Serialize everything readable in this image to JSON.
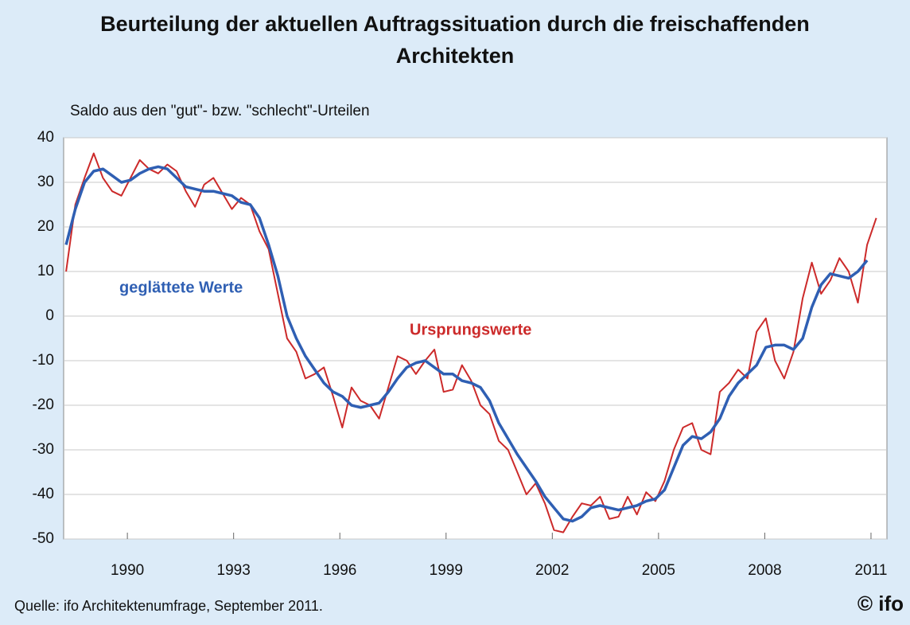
{
  "chart_data": {
    "type": "line",
    "title": [
      "Beurteilung der aktuellen Auftragssituation durch die freischaffenden",
      "Architekten"
    ],
    "subtitle": "Saldo aus den \"gut\"- bzw. \"schlecht\"-Urteilen",
    "source": "Quelle: ifo Architektenumfrage, September 2011.",
    "logo": "© ifo",
    "annotations": [
      "geglättete Werte",
      "Ursprungswerte"
    ],
    "x": [
      1988.27,
      1988.53,
      1988.79,
      1989.05,
      1989.31,
      1989.57,
      1989.83,
      1990.09,
      1990.35,
      1990.61,
      1990.87,
      1991.13,
      1991.39,
      1991.65,
      1991.91,
      1992.17,
      1992.43,
      1992.69,
      1992.95,
      1993.21,
      1993.47,
      1993.73,
      1993.99,
      1994.25,
      1994.51,
      1994.77,
      1995.03,
      1995.29,
      1995.55,
      1995.81,
      1996.07,
      1996.33,
      1996.59,
      1996.85,
      1997.11,
      1997.37,
      1997.63,
      1997.89,
      1998.15,
      1998.41,
      1998.67,
      1998.93,
      1999.19,
      1999.45,
      1999.71,
      1999.97,
      2000.23,
      2000.49,
      2000.75,
      2001.01,
      2001.27,
      2001.53,
      2001.79,
      2002.05,
      2002.31,
      2002.57,
      2002.83,
      2003.09,
      2003.35,
      2003.61,
      2003.87,
      2004.13,
      2004.39,
      2004.65,
      2004.91,
      2005.17,
      2005.43,
      2005.69,
      2005.95,
      2006.21,
      2006.47,
      2006.73,
      2006.99,
      2007.25,
      2007.51,
      2007.77,
      2008.03,
      2008.29,
      2008.55,
      2008.81,
      2009.07,
      2009.33,
      2009.59,
      2009.85,
      2010.11,
      2010.37,
      2010.63,
      2010.89,
      2011.15
    ],
    "series": [
      {
        "name": "Ursprungswerte",
        "color": "#cc2a2a",
        "values": [
          10,
          25,
          31,
          36.5,
          31,
          28,
          27,
          31,
          35,
          33,
          32,
          34,
          32.5,
          28,
          24.5,
          29.5,
          31,
          27.5,
          24,
          26.5,
          25,
          19,
          15,
          5,
          -5,
          -8,
          -14,
          -13,
          -11.5,
          -18,
          -25,
          -16,
          -19,
          -20,
          -23,
          -16,
          -9,
          -10,
          -13,
          -10,
          -7.5,
          -17,
          -16.5,
          -11,
          -14.5,
          -20,
          -22,
          -28,
          -30,
          -35,
          -40,
          -37.5,
          -42,
          -48,
          -48.5,
          -45,
          -42,
          -42.5,
          -40.5,
          -45.5,
          -45,
          -40.5,
          -44.5,
          -39.5,
          -41.5,
          -37,
          -30,
          -25,
          -24,
          -30,
          -31,
          -17,
          -15,
          -12,
          -14,
          -3.5,
          -0.5,
          -10,
          -14,
          -8,
          4,
          12,
          5,
          8,
          13,
          10,
          3,
          16,
          22
        ]
      },
      {
        "name": "geglättete Werte",
        "color": "#2f5fb3",
        "values": [
          16,
          24,
          30,
          32.5,
          33,
          31.5,
          30,
          30.5,
          32,
          33,
          33.5,
          33,
          31,
          29,
          28.5,
          28,
          28,
          27.5,
          27,
          25.5,
          25,
          22,
          16,
          9,
          0,
          -5,
          -9,
          -12,
          -15,
          -17,
          -18,
          -20,
          -20.5,
          -20,
          -19.5,
          -17,
          -14,
          -11.5,
          -10.5,
          -10,
          -11.5,
          -13,
          -13,
          -14.5,
          -15,
          -16,
          -19,
          -24,
          -27.5,
          -31,
          -34,
          -37,
          -40.5,
          -43,
          -45.5,
          -46,
          -45,
          -43,
          -42.5,
          -43,
          -43.5,
          -43,
          -42.5,
          -41.5,
          -41,
          -39,
          -34,
          -29,
          -27,
          -27.5,
          -26,
          -23,
          -18,
          -15,
          -13,
          -11,
          -7,
          -6.5,
          -6.5,
          -7.5,
          -5,
          2,
          7,
          9.5,
          9,
          8.5,
          10,
          12.5,
          null
        ]
      }
    ],
    "xlim": [
      1988.2,
      2011.45
    ],
    "xticks": [
      1990,
      1993,
      1996,
      1999,
      2002,
      2005,
      2008,
      2011
    ],
    "ylim": [
      -50,
      40
    ],
    "yticks": [
      40,
      30,
      20,
      10,
      0,
      -10,
      -20,
      -30,
      -40,
      -50
    ],
    "grid": true
  }
}
